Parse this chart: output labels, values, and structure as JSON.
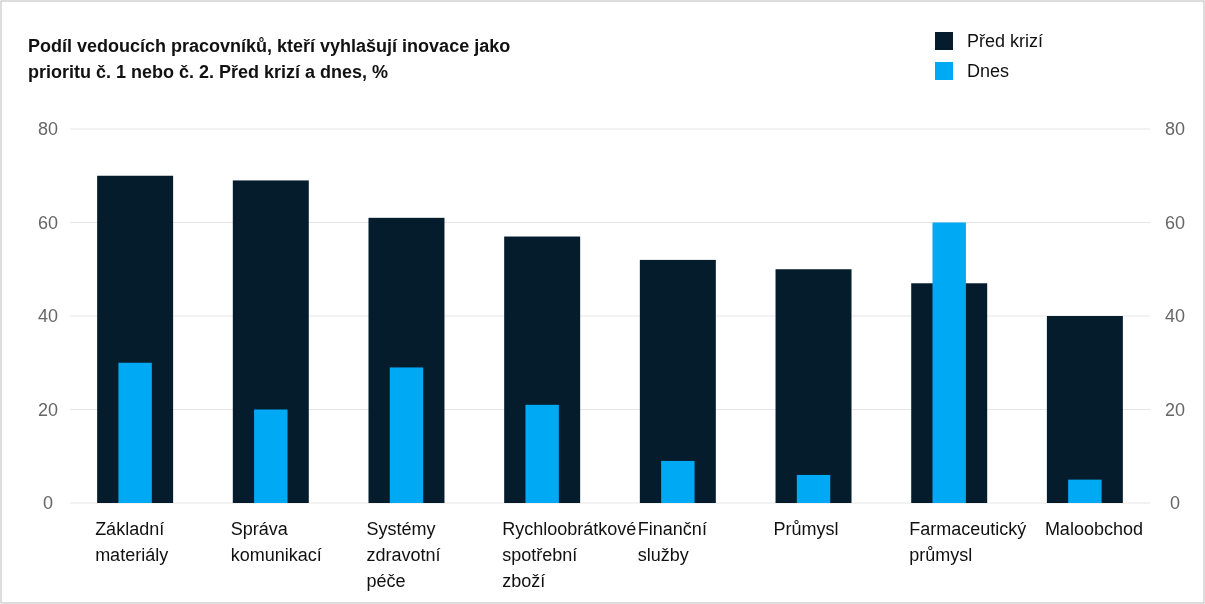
{
  "chart_data": {
    "type": "bar",
    "title": "Podíl vedoucích pracovníků, kteří vyhlašují inovace jako prioritu č. 1 nebo č. 2. Před krizí a dnes, %",
    "categories": [
      "Základní materiály",
      "Správa komunikací",
      "Systémy zdravotní péče",
      "Rychloobrátkové spotřební zboží",
      "Finanční služby",
      "Průmysl",
      "Farmaceutický průmysl",
      "Maloobchod"
    ],
    "series": [
      {
        "name": "Před krizí",
        "color": "#041c2c",
        "values": [
          70,
          69,
          61,
          57,
          52,
          50,
          47,
          40
        ]
      },
      {
        "name": "Dnes",
        "color": "#00a9f4",
        "values": [
          30,
          20,
          29,
          21,
          9,
          6,
          60,
          5
        ]
      }
    ],
    "ylim": [
      0,
      80
    ],
    "yticks": [
      0,
      20,
      40,
      60,
      80
    ],
    "y2lim": [
      0,
      80
    ],
    "y2ticks": [
      0,
      20,
      40,
      60,
      80
    ],
    "grid": "y",
    "legend": "top right"
  }
}
